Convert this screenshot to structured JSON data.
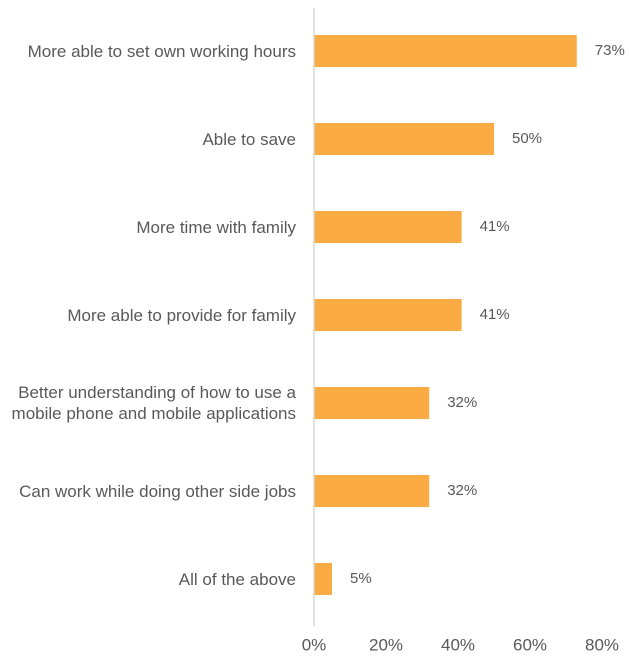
{
  "chart_data": {
    "type": "bar",
    "orientation": "horizontal",
    "categories": [
      "More able to set own working hours",
      "Able to save",
      "More time with family",
      "More able to provide for family",
      "Better understanding of how to use a mobile phone and mobile applications",
      "Can work while doing other side jobs",
      "All of the above"
    ],
    "values": [
      73,
      50,
      41,
      41,
      32,
      32,
      5
    ],
    "value_labels": [
      "73%",
      "50%",
      "41%",
      "41%",
      "32%",
      "32%",
      "5%"
    ],
    "color": "#fbab44",
    "xlim": [
      0,
      80
    ],
    "xticks": [
      {
        "value": 0,
        "label": "0%"
      },
      {
        "value": 20,
        "label": "20%"
      },
      {
        "value": 40,
        "label": "40%"
      },
      {
        "value": 60,
        "label": "60%"
      },
      {
        "value": 80,
        "label": "80%"
      }
    ],
    "grid": false
  }
}
